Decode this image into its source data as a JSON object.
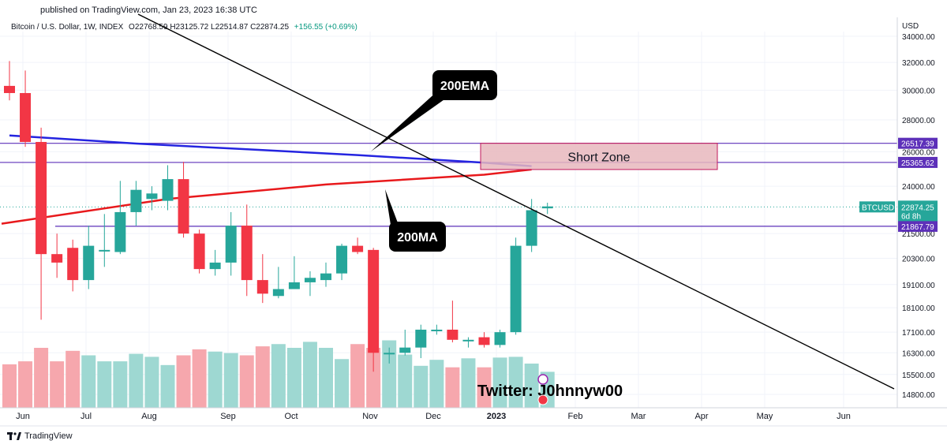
{
  "publish_line": "published on TradingView.com, Jan 23, 2023 16:38 UTC",
  "header": {
    "symbol": "Bitcoin / U.S. Dollar, 1W, INDEX",
    "ohlc": "O22768.59 H23125.72 L22514.87 C22874.25",
    "change": "+156.55 (+0.69%)"
  },
  "footer_brand": "TradingView",
  "colors": {
    "up": "#26a69a",
    "down": "#f23645",
    "ema": "#2424e0",
    "ma": "#e8191c",
    "level": "#5d30b9",
    "trend": "#000000",
    "zone_fill": "#e8b7bd",
    "zone_border": "#c2185b"
  },
  "chart_data": {
    "type": "candlestick",
    "currency": "USD",
    "symbol_label": "BTCUSD",
    "price_label": "22874.25",
    "countdown_label": "6d 8h",
    "ylim": [
      14200,
      35500
    ],
    "y_scale": "log",
    "y_ticks": [
      "34000.00",
      "32000.00",
      "30000.00",
      "28000.00",
      "26000.00",
      "24000.00",
      "21500.00",
      "20300.00",
      "19100.00",
      "18100.00",
      "17100.00",
      "16300.00",
      "15500.00",
      "14800.00"
    ],
    "x_ticks": [
      "Jun",
      "Jul",
      "Aug",
      "Sep",
      "Oct",
      "Nov",
      "Dec",
      "2023",
      "Feb",
      "Mar",
      "Apr",
      "May",
      "Jun"
    ],
    "candles": [
      {
        "o": 30300,
        "h": 32100,
        "l": 29300,
        "c": 29800
      },
      {
        "o": 29800,
        "h": 31400,
        "l": 26300,
        "c": 26600
      },
      {
        "o": 26600,
        "h": 27500,
        "l": 17600,
        "c": 20500
      },
      {
        "o": 20500,
        "h": 21500,
        "l": 19400,
        "c": 20100
      },
      {
        "o": 20800,
        "h": 21200,
        "l": 18800,
        "c": 19300
      },
      {
        "o": 19300,
        "h": 21900,
        "l": 18900,
        "c": 20900
      },
      {
        "o": 20700,
        "h": 22500,
        "l": 19900,
        "c": 20700
      },
      {
        "o": 20600,
        "h": 24300,
        "l": 20500,
        "c": 22600
      },
      {
        "o": 22600,
        "h": 24300,
        "l": 21900,
        "c": 23800
      },
      {
        "o": 23300,
        "h": 24000,
        "l": 22700,
        "c": 23600
      },
      {
        "o": 23200,
        "h": 25200,
        "l": 22700,
        "c": 24400
      },
      {
        "o": 24400,
        "h": 25400,
        "l": 21300,
        "c": 21500
      },
      {
        "o": 21500,
        "h": 21700,
        "l": 19600,
        "c": 19800
      },
      {
        "o": 19800,
        "h": 20700,
        "l": 19500,
        "c": 20100
      },
      {
        "o": 20100,
        "h": 22600,
        "l": 19500,
        "c": 21900
      },
      {
        "o": 21900,
        "h": 23000,
        "l": 18600,
        "c": 19300
      },
      {
        "o": 19300,
        "h": 20500,
        "l": 18300,
        "c": 18700
      },
      {
        "o": 18600,
        "h": 19900,
        "l": 18500,
        "c": 18900
      },
      {
        "o": 18900,
        "h": 20400,
        "l": 18900,
        "c": 19200
      },
      {
        "o": 19200,
        "h": 19700,
        "l": 18600,
        "c": 19400
      },
      {
        "o": 19300,
        "h": 20100,
        "l": 19000,
        "c": 19600
      },
      {
        "o": 19600,
        "h": 21000,
        "l": 19300,
        "c": 20900
      },
      {
        "o": 20900,
        "h": 21300,
        "l": 20500,
        "c": 20600
      },
      {
        "o": 20700,
        "h": 20800,
        "l": 15600,
        "c": 16300
      },
      {
        "o": 16300,
        "h": 16500,
        "l": 15900,
        "c": 16300
      },
      {
        "o": 16300,
        "h": 17200,
        "l": 16200,
        "c": 16500
      },
      {
        "o": 16500,
        "h": 17400,
        "l": 16100,
        "c": 17200
      },
      {
        "o": 17200,
        "h": 17400,
        "l": 17000,
        "c": 17200
      },
      {
        "o": 17200,
        "h": 18400,
        "l": 16700,
        "c": 16800
      },
      {
        "o": 16800,
        "h": 16900,
        "l": 16500,
        "c": 16800
      },
      {
        "o": 16900,
        "h": 17100,
        "l": 16500,
        "c": 16600
      },
      {
        "o": 16600,
        "h": 17200,
        "l": 16500,
        "c": 17100
      },
      {
        "o": 17100,
        "h": 21300,
        "l": 17000,
        "c": 20900
      },
      {
        "o": 20900,
        "h": 23300,
        "l": 20600,
        "c": 22700
      },
      {
        "o": 22800,
        "h": 23100,
        "l": 22500,
        "c": 22900
      }
    ],
    "volume": [
      58,
      62,
      80,
      62,
      76,
      70,
      62,
      62,
      72,
      68,
      57,
      70,
      78,
      75,
      73,
      70,
      82,
      85,
      80,
      88,
      80,
      65,
      85,
      80,
      90,
      71,
      56,
      64,
      54,
      66,
      54,
      67,
      68,
      59,
      48
    ],
    "ema200": {
      "name": "200EMA",
      "points": [
        [
          0,
          27000
        ],
        [
          8,
          26500
        ],
        [
          16,
          26100
        ],
        [
          22,
          25800
        ],
        [
          30,
          25350
        ],
        [
          33,
          25150
        ]
      ]
    },
    "ma200": {
      "name": "200MA",
      "points": [
        [
          -0.5,
          22000
        ],
        [
          10,
          23300
        ],
        [
          20,
          24100
        ],
        [
          30,
          24650
        ],
        [
          33,
          24950
        ]
      ]
    },
    "levels": [
      "26517.39",
      "25365.62",
      "21867.79"
    ],
    "zone_label": "Short Zone",
    "watermark": "Twitter: J0hnnyw00"
  }
}
